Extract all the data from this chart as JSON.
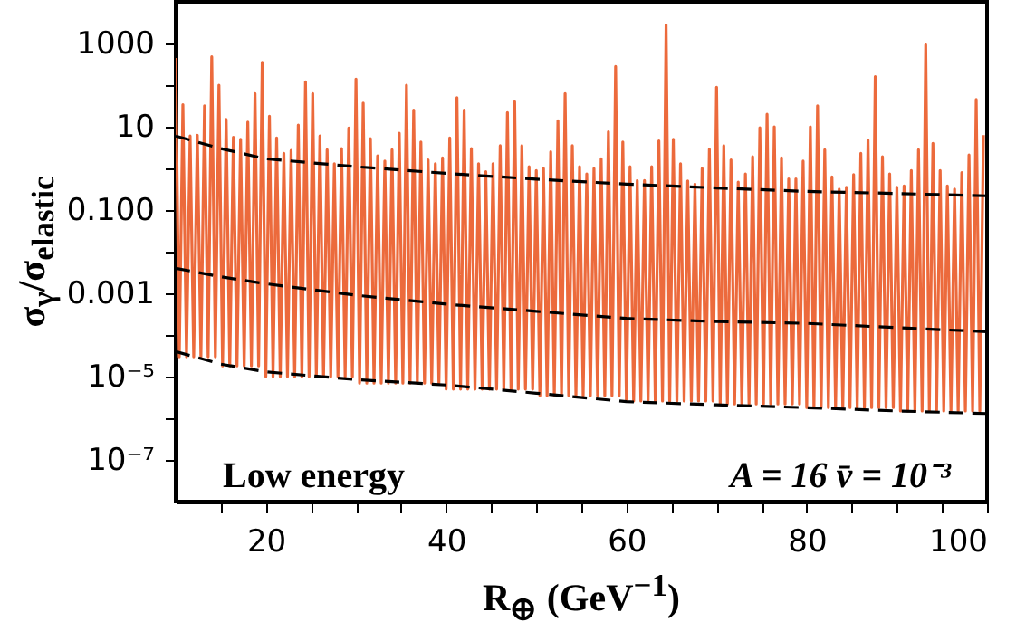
{
  "chart_data": {
    "type": "line",
    "xlabel": "R$_{⊕}$  (GeV$^{−1}$)",
    "ylabel": "σ$_{γ}$/σ$_{elastic}$",
    "annotations": [
      "Low energy",
      "A = 16   v̄ = 10⁻³"
    ],
    "xlim": [
      10,
      100
    ],
    "xticks": [
      {
        "value": 15,
        "label": null
      },
      20,
      {
        "value": 25,
        "label": null
      },
      {
        "value": 30,
        "label": null
      },
      {
        "value": 35,
        "label": null
      },
      40,
      {
        "value": 45,
        "label": null
      },
      {
        "value": 50,
        "label": null
      },
      {
        "value": 55,
        "label": null
      },
      60,
      {
        "value": 65,
        "label": null
      },
      {
        "value": 70,
        "label": null
      },
      {
        "value": 75,
        "label": null
      },
      80,
      {
        "value": 85,
        "label": null
      },
      {
        "value": 90,
        "label": null
      },
      {
        "value": 95,
        "label": null
      },
      100
    ],
    "ylim": [
      1e-08,
      10000
    ],
    "log": true,
    "grid": false,
    "yticks": [
      1000,
      {
        "value": 100,
        "label": null
      },
      10,
      {
        "value": 1,
        "label": null
      },
      {
        "value": 0.1,
        "label": "0.100"
      },
      {
        "value": 0.01,
        "label": null
      },
      0.001,
      {
        "value": 0.0001,
        "label": null
      },
      {
        "value": 1e-05,
        "label": "10⁻⁵"
      },
      {
        "value": 1e-06,
        "label": null
      },
      {
        "value": 1e-07,
        "label": "10⁻⁷"
      }
    ],
    "series": [
      {
        "color": "#ec6a3c",
        "line_style": "solid",
        "x": [
          10,
          10.4,
          10.8,
          11.2,
          11.6,
          12,
          12.4,
          12.8,
          13.2,
          13.6,
          14,
          14.4,
          14.8,
          15.2,
          15.6,
          16,
          16.4,
          16.8,
          17.2,
          17.6,
          18,
          18.4,
          18.8,
          19.2,
          19.6,
          20,
          20.4,
          20.8,
          21.2,
          21.6,
          22,
          22.4,
          22.8,
          23.2,
          23.6,
          24,
          24.4,
          24.8,
          25.2,
          25.6,
          26,
          26.4,
          26.8,
          27.2,
          27.6,
          28,
          28.4,
          28.8,
          29.2,
          29.6,
          30,
          30.4,
          30.8,
          31.2,
          31.6,
          32,
          32.4,
          32.8,
          33.2,
          33.6,
          34,
          34.4,
          34.8,
          35.2,
          35.6,
          36,
          36.4,
          36.8,
          37.2,
          37.6,
          38,
          38.4,
          38.8,
          39.2,
          39.6,
          40,
          40.4,
          40.8,
          41.2,
          41.6,
          42,
          42.4,
          42.8,
          43.2,
          43.6,
          44,
          44.4,
          44.8,
          45.2,
          45.6,
          46,
          46.4,
          46.8,
          47.2,
          47.6,
          48,
          48.4,
          48.8,
          49.2,
          49.6,
          50,
          50.4,
          50.8,
          51.2,
          51.6,
          52,
          52.4,
          52.8,
          53.2,
          53.6,
          54,
          54.4,
          54.8,
          55.2,
          55.6,
          56,
          56.4,
          56.8,
          57.2,
          57.6,
          58,
          58.4,
          58.8,
          59.2,
          59.6,
          60,
          60.4,
          60.8,
          61.2,
          61.6,
          62,
          62.4,
          62.8,
          63.2,
          63.6,
          64,
          64.4,
          64.8,
          65.2,
          65.6,
          66,
          66.4,
          66.8,
          67.2,
          67.6,
          68,
          68.4,
          68.8,
          69.2,
          69.6,
          70,
          70.4,
          70.8,
          71.2,
          71.6,
          72,
          72.4,
          72.8,
          73.2,
          73.6,
          74,
          74.4,
          74.8,
          75.2,
          75.6,
          76,
          76.4,
          76.8,
          77.2,
          77.6,
          78,
          78.4,
          78.8,
          79.2,
          79.6,
          80,
          80.4,
          80.8,
          81.2,
          81.6,
          82,
          82.4,
          82.8,
          83.2,
          83.6,
          84,
          84.4,
          84.8,
          85.2,
          85.6,
          86,
          86.4,
          86.8,
          87.2,
          87.6,
          88,
          88.4,
          88.8,
          89.2,
          89.6,
          90,
          90.4,
          90.8,
          91.2,
          91.6,
          92,
          92.4,
          92.8,
          93.2,
          93.6,
          94,
          94.4,
          94.8,
          95.2,
          95.6,
          96,
          96.4,
          96.8,
          97.2,
          97.6,
          98,
          98.4,
          98.8,
          99.2,
          99.6
        ],
        "values": [
          450,
          3e-05,
          34,
          3e-05,
          6,
          3e-05,
          6.3,
          3e-05,
          32,
          3e-05,
          480,
          3e-05,
          100,
          1.8e-05,
          15,
          1.8e-05,
          5.6,
          1.8e-05,
          5,
          1.8e-05,
          13,
          1.8e-05,
          63,
          1.8e-05,
          350,
          1e-05,
          18,
          1e-05,
          5.4,
          1e-05,
          2.3,
          1e-05,
          2.7,
          1e-05,
          11,
          1e-05,
          120,
          1e-05,
          63,
          1e-05,
          6,
          1e-05,
          2.8,
          1e-05,
          1.3,
          1e-05,
          3,
          1e-05,
          9.3,
          1e-05,
          140,
          7e-06,
          37,
          7e-06,
          5.2,
          7e-06,
          2,
          7e-06,
          1.5,
          7e-06,
          2.8,
          7e-06,
          7,
          7e-06,
          100,
          7e-06,
          25,
          7e-06,
          4.3,
          7e-06,
          1.6,
          7e-06,
          1.3,
          7e-06,
          1.8,
          5e-06,
          5.4,
          5e-06,
          50,
          5e-06,
          25,
          5e-06,
          3,
          5e-06,
          1.3,
          5e-06,
          0.83,
          5e-06,
          1.3,
          5e-06,
          3.5,
          5e-06,
          22,
          5e-06,
          40,
          5e-06,
          3.5,
          5e-06,
          1.1,
          5e-06,
          0.89,
          3.5e-06,
          1,
          3.5e-06,
          2.5,
          3.5e-06,
          14,
          3.5e-06,
          63,
          3.5e-06,
          3.5,
          3.5e-06,
          1.1,
          3.5e-06,
          0.74,
          3.5e-06,
          1,
          3.5e-06,
          1.7,
          3.5e-06,
          7.6,
          3.5e-06,
          280,
          3.5e-06,
          4.3,
          2.6e-06,
          1.1,
          2.6e-06,
          0.51,
          2.6e-06,
          0.51,
          2.6e-06,
          1.1,
          2.6e-06,
          4.6,
          2.6e-06,
          2800,
          2.6e-06,
          5,
          2.6e-06,
          1.3,
          2.6e-06,
          0.5,
          2.6e-06,
          0.42,
          2.6e-06,
          1,
          2.6e-06,
          2.9,
          2.6e-06,
          89,
          2.2e-06,
          3.5,
          2.2e-06,
          1.6,
          2.2e-06,
          0.47,
          2.2e-06,
          0.74,
          2.2e-06,
          1.9,
          2.2e-06,
          9.5,
          2.2e-06,
          20,
          2.2e-06,
          10,
          2.2e-06,
          1.8,
          2.2e-06,
          0.56,
          2.2e-06,
          0.56,
          2.2e-06,
          1.5,
          1.8e-06,
          10,
          1.8e-06,
          32,
          1.8e-06,
          2.8,
          1.8e-06,
          0.63,
          1.8e-06,
          0.32,
          1.8e-06,
          0.35,
          1.8e-06,
          0.71,
          1.8e-06,
          2.3,
          1.8e-06,
          4.8,
          1.8e-06,
          160,
          1.8e-06,
          1.9,
          1.8e-06,
          0.74,
          1.8e-06,
          0.35,
          1.5e-06,
          0.38,
          1.5e-06,
          0.89,
          1.5e-06,
          2.8,
          1.5e-06,
          930,
          1.5e-06,
          4,
          1.5e-06,
          0.89,
          1.5e-06,
          0.38,
          1.5e-06,
          0.32,
          1.5e-06,
          0.79,
          1.5e-06,
          2.1,
          1.5e-06,
          45,
          1.5e-06,
          6.3
        ]
      },
      {
        "color": "#000000",
        "line_style": "dashed",
        "x": [
          10,
          15,
          20,
          30,
          40,
          50,
          60,
          70,
          80,
          90,
          100
        ],
        "values": [
          6,
          3,
          1.7,
          1.1,
          0.76,
          0.55,
          0.42,
          0.34,
          0.28,
          0.25,
          0.22
        ]
      },
      {
        "color": "#000000",
        "line_style": "dashed",
        "x": [
          10,
          15,
          20,
          30,
          40,
          50,
          60,
          70,
          80,
          90,
          100
        ],
        "values": [
          0.004,
          0.0025,
          0.0017,
          0.0009,
          0.00055,
          0.00037,
          0.00025,
          0.00021,
          0.00019,
          0.00015,
          0.00012
        ]
      },
      {
        "color": "#000000",
        "line_style": "dashed",
        "x": [
          10,
          15,
          20,
          30,
          40,
          50,
          60,
          70,
          80,
          90,
          100
        ],
        "values": [
          4e-05,
          2e-05,
          1.3e-05,
          8.5e-06,
          6.3e-06,
          4e-06,
          2.5e-06,
          2.1e-06,
          1.8e-06,
          1.5e-06,
          1.3e-06
        ]
      }
    ]
  }
}
